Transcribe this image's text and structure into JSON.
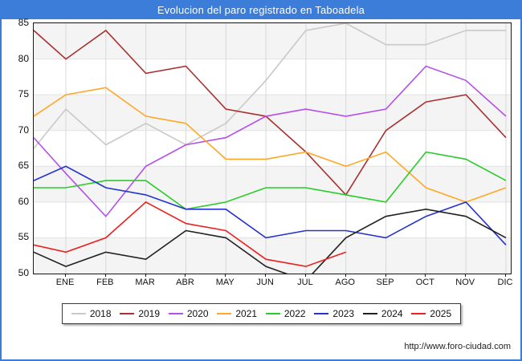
{
  "title": "Evolucion del paro registrado en Taboadela",
  "footer": {
    "url_text": "http://www.foro-ciudad.com"
  },
  "colors": {
    "frame_blue": "#3c7dd9",
    "plot_border": "#1a1a1a",
    "band_gray": "#f4f4f4",
    "band_white": "#ffffff",
    "grid_vertical": "#d8d8d8",
    "grid_horizontal": "#e2e2e2"
  },
  "chart_data": {
    "type": "line",
    "title": "Evolucion del paro registrado en Taboadela",
    "xlabel": "",
    "ylabel": "",
    "categories": [
      "ENE",
      "FEB",
      "MAR",
      "ABR",
      "MAY",
      "JUN",
      "JUL",
      "AGO",
      "SEP",
      "OCT",
      "NOV",
      "DIC"
    ],
    "ylim": [
      50,
      85
    ],
    "yticks": [
      85,
      80,
      75,
      70,
      65,
      60,
      55,
      50
    ],
    "grid": true,
    "legend_position": "bottom",
    "series": [
      {
        "name": "2018",
        "color": "#c9c9c9",
        "start": 67.5,
        "values": [
          73,
          68,
          71,
          68,
          71,
          77,
          84,
          85,
          82,
          82,
          84,
          84
        ]
      },
      {
        "name": "2019",
        "color": "#a83232",
        "start": 84,
        "values": [
          80,
          84,
          78,
          79,
          73,
          72,
          67,
          61,
          70,
          74,
          75,
          69
        ]
      },
      {
        "name": "2020",
        "color": "#b450e8",
        "start": 69,
        "values": [
          64,
          58,
          65,
          68,
          69,
          72,
          73,
          72,
          73,
          79,
          77,
          72
        ]
      },
      {
        "name": "2021",
        "color": "#ffa827",
        "start": 72,
        "values": [
          75,
          76,
          72,
          71,
          66,
          66,
          67,
          65,
          67,
          62,
          60,
          62
        ]
      },
      {
        "name": "2022",
        "color": "#29cc29",
        "start": 62,
        "values": [
          62,
          63,
          63,
          59,
          60,
          62,
          62,
          61,
          60,
          67,
          66,
          63
        ]
      },
      {
        "name": "2023",
        "color": "#2433cc",
        "start": 63,
        "values": [
          65,
          62,
          61,
          59,
          59,
          55,
          56,
          56,
          55,
          58,
          60,
          54
        ]
      },
      {
        "name": "2024",
        "color": "#222222",
        "start": 53,
        "values": [
          51,
          53,
          52,
          56,
          55,
          51,
          49,
          55,
          58,
          59,
          58,
          55
        ]
      },
      {
        "name": "2025",
        "color": "#ee2020",
        "start": 54,
        "values": [
          53,
          55,
          60,
          57,
          56,
          52,
          51,
          53,
          null,
          null,
          null,
          null
        ]
      }
    ]
  }
}
